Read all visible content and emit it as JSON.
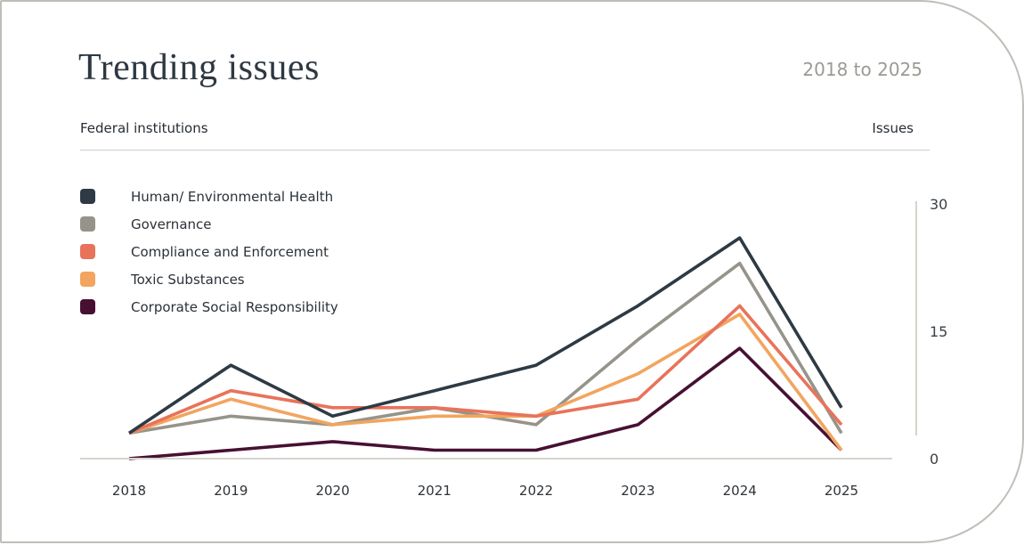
{
  "header": {
    "title": "Trending issues",
    "date_range": "2018 to 2025",
    "left_subtitle": "Federal institutions",
    "right_subtitle": "Issues"
  },
  "chart_data": {
    "type": "line",
    "title": "Trending issues",
    "subtitle": "2018 to 2025",
    "xlabel": "Federal institutions",
    "ylabel": "Issues",
    "x": [
      "2018",
      "2019",
      "2020",
      "2021",
      "2022",
      "2023",
      "2024",
      "2025"
    ],
    "series": [
      {
        "name": "Human/ Environmental Health",
        "color": "#2e3a44",
        "values": [
          3,
          11,
          5,
          8,
          11,
          18,
          26,
          6
        ]
      },
      {
        "name": "Governance",
        "color": "#96948a",
        "values": [
          3,
          5,
          4,
          6,
          4,
          14,
          23,
          3
        ]
      },
      {
        "name": "Compliance and Enforcement",
        "color": "#e8735a",
        "values": [
          3,
          8,
          6,
          6,
          5,
          7,
          18,
          4
        ]
      },
      {
        "name": "Toxic Substances",
        "color": "#f2a55f",
        "values": [
          3,
          7,
          4,
          5,
          5,
          10,
          17,
          1
        ]
      },
      {
        "name": "Corporate Social Responsibility",
        "color": "#471033",
        "values": [
          0,
          1,
          2,
          1,
          1,
          4,
          13,
          1
        ]
      }
    ],
    "yticks": [
      0,
      15,
      30
    ],
    "ylim": [
      0,
      30
    ],
    "grid": false,
    "legend_position": "top-left",
    "axis_color": "#d4d4cd",
    "border_color": "#bcc0b8"
  }
}
